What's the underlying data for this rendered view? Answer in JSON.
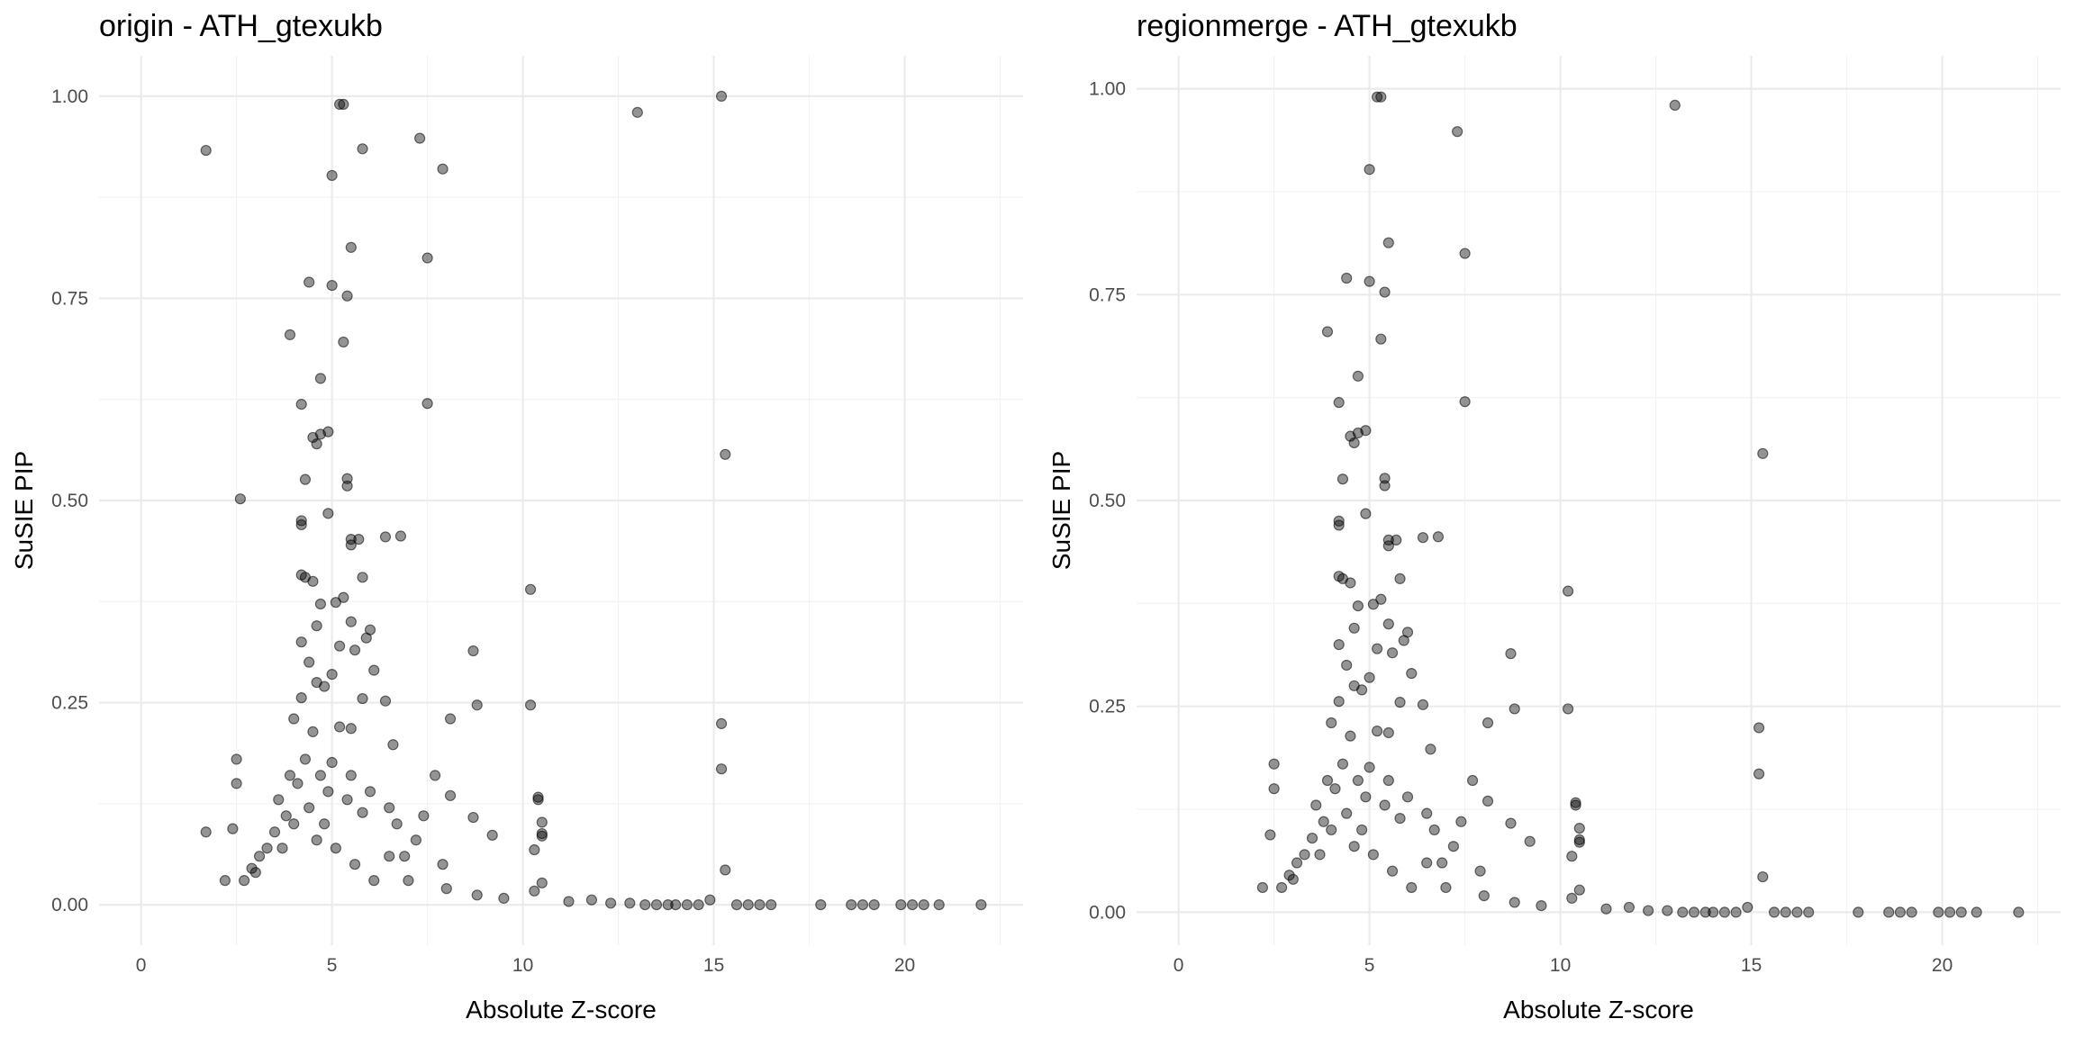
{
  "chart_data": [
    {
      "type": "scatter",
      "title": "origin - ATH_gtexukb",
      "xlabel": "Absolute Z-score",
      "ylabel": "SuSIE PIP",
      "xlim": [
        -1.1,
        23.1
      ],
      "ylim": [
        -0.05,
        1.05
      ],
      "x_ticks": [
        0,
        5,
        10,
        15,
        20
      ],
      "x_tick_labels": [
        "0",
        "5",
        "10",
        "15",
        "20"
      ],
      "y_ticks": [
        0,
        0.25,
        0.5,
        0.75,
        1.0
      ],
      "y_tick_labels": [
        "0.00",
        "0.25",
        "0.50",
        "0.75",
        "1.00"
      ],
      "grid": true,
      "point_color": "#000000",
      "point_alpha": 0.42,
      "points": [
        [
          1.7,
          0.933
        ],
        [
          5.2,
          0.99
        ],
        [
          5.3,
          0.99
        ],
        [
          7.3,
          0.948
        ],
        [
          13.0,
          0.98
        ],
        [
          15.2,
          1.0
        ],
        [
          5.0,
          0.902
        ],
        [
          5.8,
          0.935
        ],
        [
          7.9,
          0.91
        ],
        [
          5.5,
          0.813
        ],
        [
          7.5,
          0.8
        ],
        [
          7.5,
          0.62
        ],
        [
          4.4,
          0.77
        ],
        [
          5.0,
          0.766
        ],
        [
          5.4,
          0.753
        ],
        [
          3.9,
          0.705
        ],
        [
          5.3,
          0.696
        ],
        [
          4.7,
          0.651
        ],
        [
          4.2,
          0.619
        ],
        [
          15.3,
          0.557
        ],
        [
          4.5,
          0.578
        ],
        [
          4.7,
          0.582
        ],
        [
          4.9,
          0.585
        ],
        [
          4.6,
          0.57
        ],
        [
          5.4,
          0.527
        ],
        [
          4.3,
          0.526
        ],
        [
          5.4,
          0.518
        ],
        [
          2.6,
          0.502
        ],
        [
          4.9,
          0.484
        ],
        [
          4.2,
          0.475
        ],
        [
          4.2,
          0.47
        ],
        [
          5.5,
          0.452
        ],
        [
          5.7,
          0.452
        ],
        [
          6.4,
          0.455
        ],
        [
          6.8,
          0.456
        ],
        [
          5.5,
          0.445
        ],
        [
          4.2,
          0.408
        ],
        [
          4.3,
          0.405
        ],
        [
          4.5,
          0.4
        ],
        [
          5.8,
          0.405
        ],
        [
          10.2,
          0.39
        ],
        [
          5.3,
          0.38
        ],
        [
          5.1,
          0.374
        ],
        [
          4.7,
          0.372
        ],
        [
          5.5,
          0.35
        ],
        [
          4.6,
          0.345
        ],
        [
          6.0,
          0.34
        ],
        [
          5.9,
          0.33
        ],
        [
          4.2,
          0.325
        ],
        [
          5.2,
          0.32
        ],
        [
          5.6,
          0.315
        ],
        [
          8.7,
          0.314
        ],
        [
          4.4,
          0.3
        ],
        [
          5.0,
          0.285
        ],
        [
          6.1,
          0.29
        ],
        [
          4.6,
          0.275
        ],
        [
          4.8,
          0.27
        ],
        [
          4.2,
          0.256
        ],
        [
          5.8,
          0.255
        ],
        [
          6.4,
          0.252
        ],
        [
          8.8,
          0.247
        ],
        [
          10.2,
          0.247
        ],
        [
          4.0,
          0.23
        ],
        [
          8.1,
          0.23
        ],
        [
          15.2,
          0.224
        ],
        [
          5.2,
          0.22
        ],
        [
          5.5,
          0.218
        ],
        [
          4.5,
          0.214
        ],
        [
          6.6,
          0.198
        ],
        [
          2.5,
          0.18
        ],
        [
          5.0,
          0.176
        ],
        [
          15.2,
          0.168
        ],
        [
          7.7,
          0.16
        ],
        [
          2.5,
          0.15
        ],
        [
          5.5,
          0.16
        ],
        [
          6.0,
          0.14
        ],
        [
          8.1,
          0.135
        ],
        [
          10.4,
          0.133
        ],
        [
          10.4,
          0.13
        ],
        [
          5.4,
          0.13
        ],
        [
          6.5,
          0.12
        ],
        [
          5.8,
          0.114
        ],
        [
          7.4,
          0.11
        ],
        [
          8.7,
          0.108
        ],
        [
          10.5,
          0.102
        ],
        [
          1.7,
          0.09
        ],
        [
          2.4,
          0.094
        ],
        [
          6.7,
          0.1
        ],
        [
          9.2,
          0.086
        ],
        [
          10.5,
          0.088
        ],
        [
          10.5,
          0.085
        ],
        [
          7.2,
          0.08
        ],
        [
          10.3,
          0.068
        ],
        [
          6.5,
          0.06
        ],
        [
          7.9,
          0.05
        ],
        [
          15.3,
          0.043
        ],
        [
          10.5,
          0.027
        ],
        [
          10.3,
          0.017
        ],
        [
          3.1,
          0.06
        ],
        [
          2.9,
          0.045
        ],
        [
          2.2,
          0.03
        ],
        [
          3.5,
          0.09
        ],
        [
          3.8,
          0.11
        ],
        [
          3.6,
          0.13
        ],
        [
          4.1,
          0.15
        ],
        [
          3.7,
          0.07
        ],
        [
          4.4,
          0.12
        ],
        [
          4.0,
          0.1
        ],
        [
          4.6,
          0.08
        ],
        [
          4.9,
          0.14
        ],
        [
          3.3,
          0.07
        ],
        [
          2.7,
          0.03
        ],
        [
          3.9,
          0.16
        ],
        [
          4.3,
          0.18
        ],
        [
          4.7,
          0.16
        ],
        [
          3.0,
          0.04
        ],
        [
          4.8,
          0.1
        ],
        [
          5.1,
          0.07
        ],
        [
          5.6,
          0.05
        ],
        [
          6.1,
          0.03
        ],
        [
          6.9,
          0.06
        ],
        [
          7.0,
          0.03
        ],
        [
          8.0,
          0.02
        ],
        [
          8.8,
          0.012
        ],
        [
          9.5,
          0.008
        ],
        [
          11.2,
          0.004
        ],
        [
          11.8,
          0.006
        ],
        [
          12.3,
          0.002
        ],
        [
          12.8,
          0.002
        ],
        [
          13.2,
          0.0
        ],
        [
          13.5,
          0.0
        ],
        [
          13.8,
          0.0
        ],
        [
          14.0,
          0.0
        ],
        [
          14.3,
          0.0
        ],
        [
          14.6,
          0.0
        ],
        [
          14.9,
          0.006
        ],
        [
          15.6,
          0.0
        ],
        [
          15.9,
          0.0
        ],
        [
          16.2,
          0.0
        ],
        [
          16.5,
          0.0
        ],
        [
          17.8,
          0.0
        ],
        [
          18.6,
          0.0
        ],
        [
          18.9,
          0.0
        ],
        [
          19.2,
          0.0
        ],
        [
          19.9,
          0.0
        ],
        [
          20.2,
          0.0
        ],
        [
          20.5,
          0.0
        ],
        [
          20.9,
          0.0
        ],
        [
          22.0,
          0.0
        ]
      ]
    },
    {
      "type": "scatter",
      "title": "regionmerge - ATH_gtexukb",
      "xlabel": "Absolute Z-score",
      "ylabel": "SuSIE PIP",
      "xlim": [
        -1.1,
        23.1
      ],
      "ylim": [
        -0.04,
        1.04
      ],
      "x_ticks": [
        0,
        5,
        10,
        15,
        20
      ],
      "x_tick_labels": [
        "0",
        "5",
        "10",
        "15",
        "20"
      ],
      "y_ticks": [
        0,
        0.25,
        0.5,
        0.75,
        1.0
      ],
      "y_tick_labels": [
        "0.00",
        "0.25",
        "0.50",
        "0.75",
        "1.00"
      ],
      "grid": true,
      "point_color": "#000000",
      "point_alpha": 0.42,
      "points": [
        [
          5.2,
          0.99
        ],
        [
          5.3,
          0.99
        ],
        [
          13.0,
          0.98
        ],
        [
          7.3,
          0.948
        ],
        [
          5.0,
          0.902
        ],
        [
          5.5,
          0.813
        ],
        [
          7.5,
          0.8
        ],
        [
          7.5,
          0.62
        ],
        [
          4.4,
          0.77
        ],
        [
          5.0,
          0.766
        ],
        [
          5.4,
          0.753
        ],
        [
          3.9,
          0.705
        ],
        [
          5.3,
          0.696
        ],
        [
          4.7,
          0.651
        ],
        [
          4.2,
          0.619
        ],
        [
          15.3,
          0.557
        ],
        [
          4.5,
          0.578
        ],
        [
          4.7,
          0.582
        ],
        [
          4.9,
          0.585
        ],
        [
          4.6,
          0.57
        ],
        [
          5.4,
          0.527
        ],
        [
          4.3,
          0.526
        ],
        [
          5.4,
          0.518
        ],
        [
          4.9,
          0.484
        ],
        [
          4.2,
          0.475
        ],
        [
          4.2,
          0.47
        ],
        [
          5.5,
          0.452
        ],
        [
          5.7,
          0.452
        ],
        [
          6.4,
          0.455
        ],
        [
          6.8,
          0.456
        ],
        [
          5.5,
          0.445
        ],
        [
          4.2,
          0.408
        ],
        [
          4.3,
          0.405
        ],
        [
          4.5,
          0.4
        ],
        [
          5.8,
          0.405
        ],
        [
          10.2,
          0.39
        ],
        [
          5.3,
          0.38
        ],
        [
          5.1,
          0.374
        ],
        [
          4.7,
          0.372
        ],
        [
          5.5,
          0.35
        ],
        [
          4.6,
          0.345
        ],
        [
          6.0,
          0.34
        ],
        [
          5.9,
          0.33
        ],
        [
          4.2,
          0.325
        ],
        [
          5.2,
          0.32
        ],
        [
          5.6,
          0.315
        ],
        [
          8.7,
          0.314
        ],
        [
          4.4,
          0.3
        ],
        [
          5.0,
          0.285
        ],
        [
          6.1,
          0.29
        ],
        [
          4.6,
          0.275
        ],
        [
          4.8,
          0.27
        ],
        [
          4.2,
          0.256
        ],
        [
          5.8,
          0.255
        ],
        [
          6.4,
          0.252
        ],
        [
          8.8,
          0.247
        ],
        [
          10.2,
          0.247
        ],
        [
          4.0,
          0.23
        ],
        [
          8.1,
          0.23
        ],
        [
          15.2,
          0.224
        ],
        [
          5.2,
          0.22
        ],
        [
          5.5,
          0.218
        ],
        [
          4.5,
          0.214
        ],
        [
          6.6,
          0.198
        ],
        [
          2.5,
          0.18
        ],
        [
          5.0,
          0.176
        ],
        [
          15.2,
          0.168
        ],
        [
          7.7,
          0.16
        ],
        [
          2.5,
          0.15
        ],
        [
          5.5,
          0.16
        ],
        [
          6.0,
          0.14
        ],
        [
          8.1,
          0.135
        ],
        [
          10.4,
          0.133
        ],
        [
          10.4,
          0.13
        ],
        [
          5.4,
          0.13
        ],
        [
          6.5,
          0.12
        ],
        [
          5.8,
          0.114
        ],
        [
          7.4,
          0.11
        ],
        [
          8.7,
          0.108
        ],
        [
          10.5,
          0.102
        ],
        [
          2.4,
          0.094
        ],
        [
          6.7,
          0.1
        ],
        [
          9.2,
          0.086
        ],
        [
          10.5,
          0.088
        ],
        [
          10.5,
          0.085
        ],
        [
          7.2,
          0.08
        ],
        [
          10.3,
          0.068
        ],
        [
          6.5,
          0.06
        ],
        [
          7.9,
          0.05
        ],
        [
          15.3,
          0.043
        ],
        [
          10.5,
          0.027
        ],
        [
          10.3,
          0.017
        ],
        [
          3.1,
          0.06
        ],
        [
          2.9,
          0.045
        ],
        [
          2.2,
          0.03
        ],
        [
          3.5,
          0.09
        ],
        [
          3.8,
          0.11
        ],
        [
          3.6,
          0.13
        ],
        [
          4.1,
          0.15
        ],
        [
          3.7,
          0.07
        ],
        [
          4.4,
          0.12
        ],
        [
          4.0,
          0.1
        ],
        [
          4.6,
          0.08
        ],
        [
          4.9,
          0.14
        ],
        [
          3.3,
          0.07
        ],
        [
          2.7,
          0.03
        ],
        [
          3.9,
          0.16
        ],
        [
          4.3,
          0.18
        ],
        [
          4.7,
          0.16
        ],
        [
          3.0,
          0.04
        ],
        [
          4.8,
          0.1
        ],
        [
          5.1,
          0.07
        ],
        [
          5.6,
          0.05
        ],
        [
          6.1,
          0.03
        ],
        [
          6.9,
          0.06
        ],
        [
          7.0,
          0.03
        ],
        [
          8.0,
          0.02
        ],
        [
          8.8,
          0.012
        ],
        [
          9.5,
          0.008
        ],
        [
          11.2,
          0.004
        ],
        [
          11.8,
          0.006
        ],
        [
          12.3,
          0.002
        ],
        [
          12.8,
          0.002
        ],
        [
          13.2,
          0.0
        ],
        [
          13.5,
          0.0
        ],
        [
          13.8,
          0.0
        ],
        [
          14.0,
          0.0
        ],
        [
          14.3,
          0.0
        ],
        [
          14.6,
          0.0
        ],
        [
          14.9,
          0.006
        ],
        [
          15.6,
          0.0
        ],
        [
          15.9,
          0.0
        ],
        [
          16.2,
          0.0
        ],
        [
          16.5,
          0.0
        ],
        [
          17.8,
          0.0
        ],
        [
          18.6,
          0.0
        ],
        [
          18.9,
          0.0
        ],
        [
          19.2,
          0.0
        ],
        [
          19.9,
          0.0
        ],
        [
          20.2,
          0.0
        ],
        [
          20.5,
          0.0
        ],
        [
          20.9,
          0.0
        ],
        [
          22.0,
          0.0
        ]
      ]
    }
  ]
}
